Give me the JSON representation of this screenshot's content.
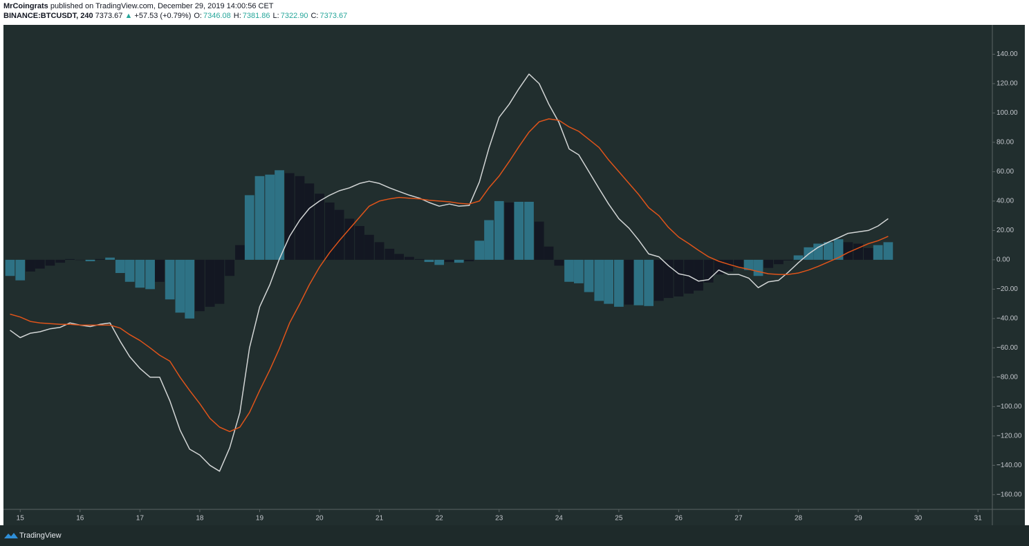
{
  "header": {
    "author": "MrCoingrats",
    "published": "published on TradingView.com, December 29, 2019 14:00:56 CET",
    "symbol": "BINANCE:BTCUSDT, 240",
    "last": "7373.67",
    "arrow": "▲",
    "change": "+57.53 (+0.79%)",
    "ohlc": [
      {
        "label": "O:",
        "value": "7346.08"
      },
      {
        "label": "H:",
        "value": "7381.86"
      },
      {
        "label": "L:",
        "value": "7322.90"
      },
      {
        "label": "C:",
        "value": "7373.67"
      }
    ]
  },
  "footer": {
    "brand": "TradingView"
  },
  "chart_data": {
    "type": "combo",
    "xlim": [
      14.72,
      31.24
    ],
    "xticks": [
      15,
      16,
      17,
      18,
      19,
      20,
      21,
      22,
      23,
      24,
      25,
      26,
      27,
      28,
      29,
      30,
      31
    ],
    "ylim": [
      -170,
      160
    ],
    "yticks": [
      {
        "value": 140,
        "label": "140.00"
      },
      {
        "value": 120,
        "label": "120.00"
      },
      {
        "value": 100,
        "label": "100.00"
      },
      {
        "value": 80,
        "label": "80.00"
      },
      {
        "value": 60,
        "label": "60.00"
      },
      {
        "value": 40,
        "label": "40.00"
      },
      {
        "value": 20,
        "label": "20.00"
      },
      {
        "value": 0,
        "label": "0.00"
      },
      {
        "value": -20,
        "label": "−20.00"
      },
      {
        "value": -40,
        "label": "−40.00"
      },
      {
        "value": -60,
        "label": "−60.00"
      },
      {
        "value": -80,
        "label": "−80.00"
      },
      {
        "value": -100,
        "label": "−100.00"
      },
      {
        "value": -120,
        "label": "−120.00"
      },
      {
        "value": -140,
        "label": "−140.00"
      },
      {
        "value": -160,
        "label": "−160.00"
      }
    ],
    "grid": false,
    "x": [
      14.83,
      15,
      15.17,
      15.33,
      15.5,
      15.67,
      15.83,
      16,
      16.17,
      16.33,
      16.5,
      16.67,
      16.83,
      17,
      17.17,
      17.33,
      17.5,
      17.67,
      17.83,
      18,
      18.17,
      18.33,
      18.5,
      18.67,
      18.83,
      19,
      19.17,
      19.33,
      19.5,
      19.67,
      19.83,
      20,
      20.17,
      20.33,
      20.5,
      20.67,
      20.83,
      21,
      21.17,
      21.33,
      21.5,
      21.67,
      21.83,
      22,
      22.17,
      22.33,
      22.5,
      22.67,
      22.83,
      23,
      23.17,
      23.33,
      23.5,
      23.67,
      23.83,
      24,
      24.17,
      24.33,
      24.5,
      24.67,
      24.83,
      25,
      25.17,
      25.33,
      25.5,
      25.67,
      25.83,
      26,
      26.17,
      26.33,
      26.5,
      26.67,
      26.83,
      27,
      27.17,
      27.33,
      27.5,
      27.67,
      27.83,
      28,
      28.17,
      28.33,
      28.5,
      28.67,
      28.83,
      29,
      29.17,
      29.33,
      29.5
    ],
    "series": [
      {
        "type": "bar",
        "colors": [
          "#2e7285",
          "#131722"
        ],
        "values": [
          -11,
          -14,
          -8,
          -6,
          -4,
          -2,
          0.5,
          -0.2,
          -1,
          0.5,
          1.5,
          -9,
          -15,
          -19,
          -20,
          -15,
          -27,
          -36,
          -40,
          -35,
          -32,
          -30,
          -11,
          10,
          44,
          57,
          58,
          61,
          59,
          57,
          52,
          45,
          39,
          34,
          28,
          23,
          17,
          12,
          7.5,
          4,
          2,
          0.5,
          -1.5,
          -3.5,
          -1.5,
          -2,
          -1,
          13,
          27,
          40,
          39,
          39.5,
          39.5,
          26,
          9,
          -4,
          -15,
          -16,
          -22,
          -28,
          -30,
          -32,
          -30.5,
          -31,
          -31.5,
          -28,
          -26,
          -25,
          -23,
          -21,
          -15.5,
          -10,
          -8,
          -5,
          -7,
          -11,
          -5.5,
          -3,
          -0.5,
          3,
          8.5,
          11,
          12,
          14,
          12,
          11,
          8,
          10,
          12
        ]
      },
      {
        "type": "line",
        "color": "#d3d6d6",
        "values": [
          -48,
          -53,
          -50,
          -49,
          -47,
          -46,
          -43,
          -44.5,
          -45.5,
          -44,
          -43,
          -55.5,
          -66,
          -74,
          -80,
          -80,
          -96,
          -116,
          -129,
          -133,
          -140,
          -144,
          -128,
          -104,
          -60,
          -32,
          -17,
          0.5,
          16,
          27,
          35,
          40,
          44,
          47,
          49,
          52,
          53.5,
          52,
          49,
          46.5,
          44,
          42,
          39,
          36.5,
          38,
          36.5,
          37,
          53,
          76,
          97,
          106,
          116.5,
          126.5,
          120,
          106,
          93.5,
          75.5,
          71.5,
          60,
          48.5,
          38,
          28,
          21.5,
          13.5,
          4,
          2,
          -4,
          -9.5,
          -11,
          -14.5,
          -13.5,
          -7,
          -10,
          -10,
          -12.5,
          -19,
          -15,
          -14,
          -8.5,
          -2,
          4,
          8.5,
          12,
          15,
          18,
          19,
          20,
          23,
          28
        ]
      },
      {
        "type": "line",
        "color": "#e0541a",
        "values": [
          -37,
          -39,
          -42,
          -43,
          -43.5,
          -44,
          -44,
          -44.5,
          -44.5,
          -44.5,
          -44.5,
          -46.5,
          -51,
          -55,
          -60,
          -65,
          -69,
          -80,
          -89,
          -98,
          -108,
          -114,
          -117,
          -114,
          -104,
          -89,
          -75,
          -60.5,
          -43,
          -30,
          -17,
          -5,
          5,
          13,
          21,
          29,
          36.5,
          40,
          41.5,
          42.5,
          42,
          41.5,
          40.5,
          40,
          39.5,
          38.5,
          38,
          40,
          49,
          57,
          67,
          77,
          87,
          94,
          96,
          95,
          90.5,
          87.5,
          82,
          76.5,
          68,
          60,
          52,
          44.5,
          35.5,
          30,
          22,
          15.5,
          11,
          6.5,
          2,
          -1,
          -3,
          -5,
          -6.5,
          -8,
          -9.5,
          -10,
          -10,
          -9,
          -7,
          -4.5,
          -1.5,
          1.5,
          5,
          8,
          11,
          13,
          16
        ]
      }
    ]
  }
}
